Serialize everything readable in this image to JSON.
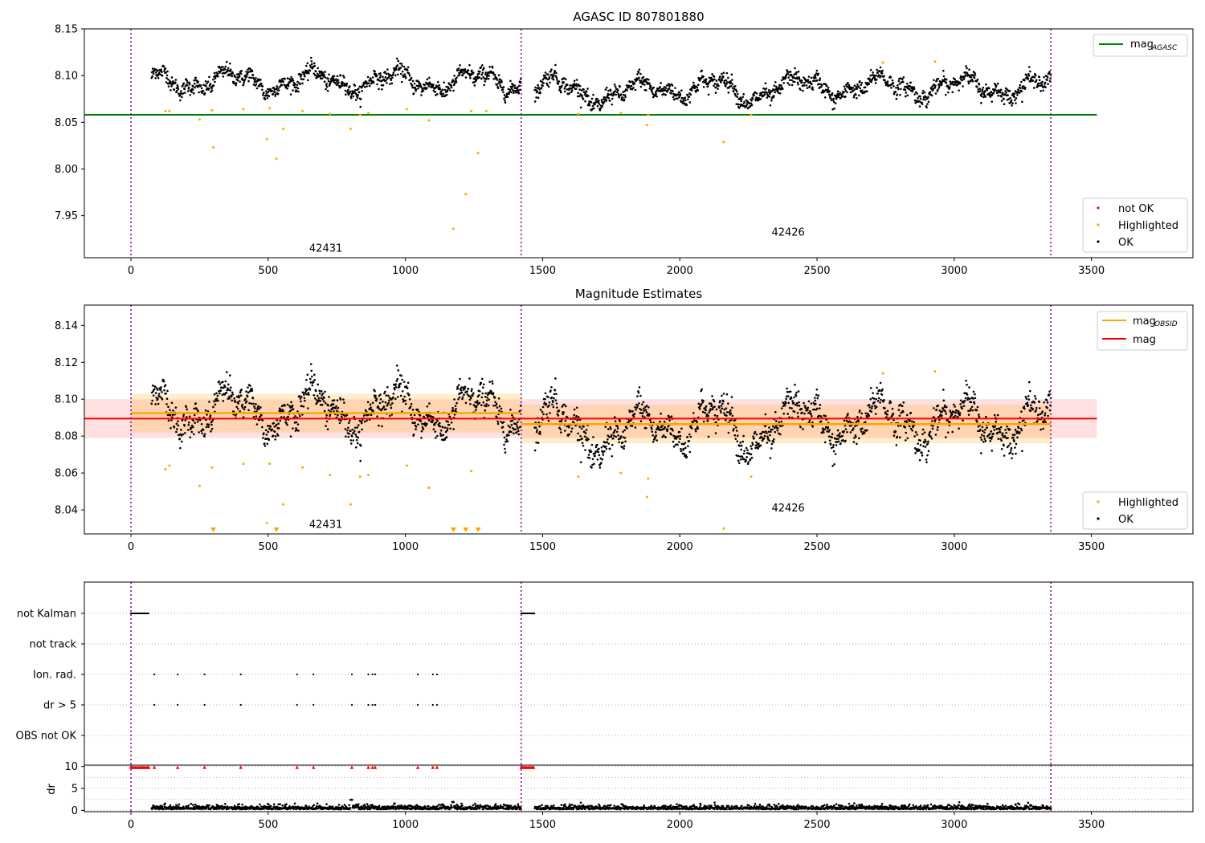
{
  "chart_data": [
    {
      "type": "scatter",
      "title": "AGASC ID 807801880",
      "xlim": [
        -170,
        3870
      ],
      "ylim": [
        7.905,
        8.15
      ],
      "xticks": [
        "0",
        "500",
        "1000",
        "1500",
        "2000",
        "2500",
        "3000",
        "3500"
      ],
      "yticks": [
        "7.95",
        "8.00",
        "8.05",
        "8.10",
        "8.15"
      ],
      "obsid_boundaries": [
        0,
        1422,
        3352
      ],
      "obsid_labels": [
        {
          "text": "42431",
          "x": 710,
          "y": 7.915
        },
        {
          "text": "42426",
          "x": 2395,
          "y": 7.932
        }
      ],
      "hlines": [
        {
          "name": "mag_AGASC",
          "y": 8.058,
          "x_range": [
            0,
            3520
          ],
          "color": "#008000"
        }
      ],
      "highlighted_points": [
        [
          125,
          8.062
        ],
        [
          140,
          8.062
        ],
        [
          250,
          8.053
        ],
        [
          300,
          8.023
        ],
        [
          295,
          8.063
        ],
        [
          410,
          8.064
        ],
        [
          495,
          8.032
        ],
        [
          530,
          8.011
        ],
        [
          555,
          8.043
        ],
        [
          505,
          8.065
        ],
        [
          625,
          8.062
        ],
        [
          725,
          8.059
        ],
        [
          800,
          8.043
        ],
        [
          835,
          8.058
        ],
        [
          865,
          8.06
        ],
        [
          1005,
          8.064
        ],
        [
          1085,
          8.052
        ],
        [
          1175,
          7.936
        ],
        [
          1220,
          7.973
        ],
        [
          1240,
          8.062
        ],
        [
          1265,
          8.017
        ],
        [
          1295,
          8.062
        ],
        [
          1630,
          8.059
        ],
        [
          1785,
          8.06
        ],
        [
          1880,
          8.047
        ],
        [
          1885,
          8.058
        ],
        [
          2160,
          8.029
        ],
        [
          2260,
          8.058
        ],
        [
          2740,
          8.114
        ],
        [
          2930,
          8.115
        ]
      ],
      "legends": [
        {
          "position": "top-right",
          "entries": [
            {
              "label": "mag",
              "sub": "AGASC",
              "color": "#008000",
              "kind": "line"
            }
          ]
        },
        {
          "position": "lower-right",
          "entries": [
            {
              "label": "not OK",
              "color": "#ff0000",
              "kind": "dot"
            },
            {
              "label": "Highlighted",
              "color": "#ffa500",
              "kind": "dot"
            },
            {
              "label": "OK",
              "color": "#000000",
              "kind": "dot"
            }
          ]
        }
      ]
    },
    {
      "type": "scatter",
      "title": "Magnitude Estimates",
      "xlim": [
        -170,
        3870
      ],
      "ylim": [
        8.027,
        8.151
      ],
      "xticks": [
        "0",
        "500",
        "1000",
        "1500",
        "2000",
        "2500",
        "3000",
        "3500"
      ],
      "yticks": [
        "8.04",
        "8.06",
        "8.08",
        "8.10",
        "8.12",
        "8.14"
      ],
      "obsid_boundaries": [
        0,
        1422,
        3352
      ],
      "obsid_labels": [
        {
          "text": "42431",
          "x": 710,
          "y": 8.032
        },
        {
          "text": "42426",
          "x": 2395,
          "y": 8.041
        }
      ],
      "overall_mag": {
        "name": "mag",
        "y": 8.0895,
        "band": [
          8.079,
          8.1
        ],
        "x_range": [
          -170,
          3520
        ],
        "color": "#ff0000"
      },
      "obsid_mag": [
        {
          "x_range": [
            0,
            1422
          ],
          "y": 8.0925,
          "band": [
            8.082,
            8.103
          ]
        },
        {
          "x_range": [
            1422,
            3352
          ],
          "y": 8.0865,
          "band": [
            8.076,
            8.097
          ]
        }
      ],
      "highlighted_points": [
        [
          125,
          8.062
        ],
        [
          140,
          8.064
        ],
        [
          250,
          8.053
        ],
        [
          295,
          8.063
        ],
        [
          410,
          8.065
        ],
        [
          495,
          8.033
        ],
        [
          505,
          8.065
        ],
        [
          555,
          8.043
        ],
        [
          625,
          8.063
        ],
        [
          725,
          8.059
        ],
        [
          800,
          8.043
        ],
        [
          835,
          8.058
        ],
        [
          865,
          8.059
        ],
        [
          1005,
          8.064
        ],
        [
          1085,
          8.052
        ],
        [
          1240,
          8.061
        ],
        [
          1630,
          8.058
        ],
        [
          1785,
          8.06
        ],
        [
          1880,
          8.047
        ],
        [
          1885,
          8.057
        ],
        [
          2160,
          8.03
        ],
        [
          2260,
          8.058
        ],
        [
          2740,
          8.114
        ],
        [
          2930,
          8.115
        ]
      ],
      "out_of_range_markers": [
        300,
        530,
        1175,
        1220,
        1265
      ],
      "legends": [
        {
          "position": "top-right",
          "entries": [
            {
              "label": "mag",
              "sub": "OBSID",
              "color": "#ffa500",
              "kind": "line"
            },
            {
              "label": "mag",
              "sub": "",
              "color": "#ff0000",
              "kind": "line"
            }
          ]
        },
        {
          "position": "lower-right",
          "entries": [
            {
              "label": "Highlighted",
              "color": "#ffa500",
              "kind": "dot"
            },
            {
              "label": "OK",
              "color": "#000000",
              "kind": "dot"
            }
          ]
        }
      ]
    },
    {
      "type": "scatter",
      "title": "",
      "xlim": [
        -170,
        3870
      ],
      "categories": [
        "not Kalman",
        "not track",
        "Ion. rad.",
        "dr > 5",
        "OBS not OK"
      ],
      "flag_points": {
        "not Kalman": [
          [
            0,
            65
          ],
          [
            1422,
            1470
          ]
        ],
        "Ion. rad.": [
          85,
          170,
          268,
          400,
          605,
          665,
          805,
          865,
          880,
          890,
          1045,
          1100,
          1115
        ],
        "dr > 5": [
          85,
          170,
          268,
          400,
          605,
          665,
          805,
          865,
          880,
          890,
          1045,
          1100,
          1115
        ],
        "OBS not OK": []
      },
      "obsid_boundaries": [
        0,
        1422,
        3352
      ]
    },
    {
      "type": "scatter",
      "title": "",
      "ylabel": "dr",
      "xlim": [
        -170,
        3870
      ],
      "ylim": [
        -0.3,
        10.3
      ],
      "xticks": [
        "0",
        "500",
        "1000",
        "1500",
        "2000",
        "2500",
        "3000",
        "3500"
      ],
      "yticks": [
        "0",
        "5",
        "10"
      ],
      "clipped_points": [
        [
          0,
          65
        ],
        [
          1422,
          1470
        ],
        85,
        170,
        268,
        400,
        605,
        665,
        805,
        865,
        880,
        890,
        1045,
        1100,
        1115
      ],
      "obsid_boundaries": [
        0,
        1422,
        3352
      ]
    }
  ]
}
